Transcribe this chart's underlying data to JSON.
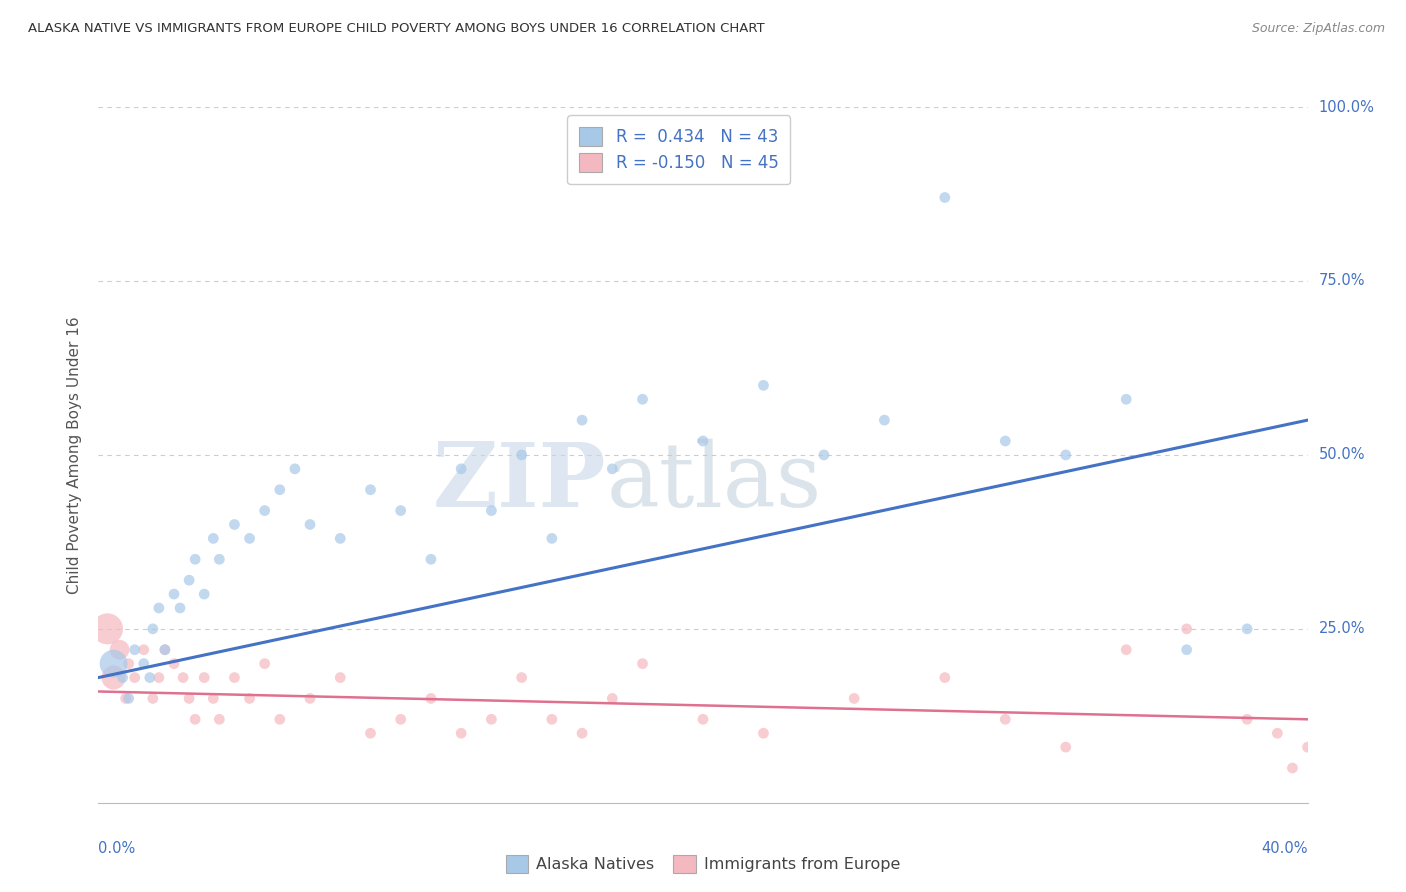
{
  "title": "ALASKA NATIVE VS IMMIGRANTS FROM EUROPE CHILD POVERTY AMONG BOYS UNDER 16 CORRELATION CHART",
  "source": "Source: ZipAtlas.com",
  "ylabel": "Child Poverty Among Boys Under 16",
  "alaska_R": 0.434,
  "alaska_N": 43,
  "europe_R": -0.15,
  "europe_N": 45,
  "alaska_color": "#a8c8e8",
  "europe_color": "#f4b8c0",
  "alaska_line_color": "#4472c4",
  "europe_line_color": "#e07090",
  "background_color": "#ffffff",
  "grid_color": "#cccccc",
  "alaska_scatter_x": [
    0.5,
    0.8,
    1.0,
    1.2,
    1.5,
    1.7,
    1.8,
    2.0,
    2.2,
    2.5,
    2.7,
    3.0,
    3.2,
    3.5,
    3.8,
    4.0,
    4.5,
    5.0,
    5.5,
    6.0,
    6.5,
    7.0,
    8.0,
    9.0,
    10.0,
    11.0,
    12.0,
    13.0,
    14.0,
    15.0,
    16.0,
    17.0,
    18.0,
    20.0,
    22.0,
    24.0,
    26.0,
    28.0,
    30.0,
    32.0,
    34.0,
    36.0,
    38.0
  ],
  "alaska_scatter_y": [
    20,
    18,
    15,
    22,
    20,
    18,
    25,
    28,
    22,
    30,
    28,
    32,
    35,
    30,
    38,
    35,
    40,
    38,
    42,
    45,
    48,
    40,
    38,
    45,
    42,
    35,
    48,
    42,
    50,
    38,
    55,
    48,
    58,
    52,
    60,
    50,
    55,
    87,
    52,
    50,
    58,
    22,
    25
  ],
  "alaska_scatter_sizes": [
    400,
    60,
    60,
    60,
    60,
    60,
    60,
    60,
    60,
    60,
    60,
    60,
    60,
    60,
    60,
    60,
    60,
    60,
    60,
    60,
    60,
    60,
    60,
    60,
    60,
    60,
    60,
    60,
    60,
    60,
    60,
    60,
    60,
    60,
    60,
    60,
    60,
    60,
    60,
    60,
    60,
    60,
    60
  ],
  "europe_scatter_x": [
    0.3,
    0.5,
    0.7,
    0.9,
    1.0,
    1.2,
    1.5,
    1.8,
    2.0,
    2.2,
    2.5,
    2.8,
    3.0,
    3.2,
    3.5,
    3.8,
    4.0,
    4.5,
    5.0,
    5.5,
    6.0,
    7.0,
    8.0,
    9.0,
    10.0,
    11.0,
    12.0,
    13.0,
    14.0,
    15.0,
    16.0,
    17.0,
    18.0,
    20.0,
    22.0,
    25.0,
    28.0,
    30.0,
    32.0,
    34.0,
    36.0,
    38.0,
    39.0,
    39.5,
    40.0
  ],
  "europe_scatter_y": [
    25,
    18,
    22,
    15,
    20,
    18,
    22,
    15,
    18,
    22,
    20,
    18,
    15,
    12,
    18,
    15,
    12,
    18,
    15,
    20,
    12,
    15,
    18,
    10,
    12,
    15,
    10,
    12,
    18,
    12,
    10,
    15,
    20,
    12,
    10,
    15,
    18,
    12,
    8,
    22,
    25,
    12,
    10,
    5,
    8
  ],
  "europe_scatter_sizes": [
    500,
    300,
    200,
    60,
    60,
    60,
    60,
    60,
    60,
    60,
    60,
    60,
    60,
    60,
    60,
    60,
    60,
    60,
    60,
    60,
    60,
    60,
    60,
    60,
    60,
    60,
    60,
    60,
    60,
    60,
    60,
    60,
    60,
    60,
    60,
    60,
    60,
    60,
    60,
    60,
    60,
    60,
    60,
    60,
    60
  ],
  "xlim": [
    0,
    40
  ],
  "ylim": [
    0,
    100
  ],
  "alaska_line_y0": 18,
  "alaska_line_y1": 55,
  "europe_line_y0": 16,
  "europe_line_y1": 12,
  "watermark_zip": "ZIP",
  "watermark_atlas": "atlas",
  "ytick_labels": [
    "25.0%",
    "50.0%",
    "75.0%",
    "100.0%"
  ],
  "ytick_vals": [
    25,
    50,
    75,
    100
  ],
  "xtick_label_left": "0.0%",
  "xtick_label_right": "40.0%"
}
